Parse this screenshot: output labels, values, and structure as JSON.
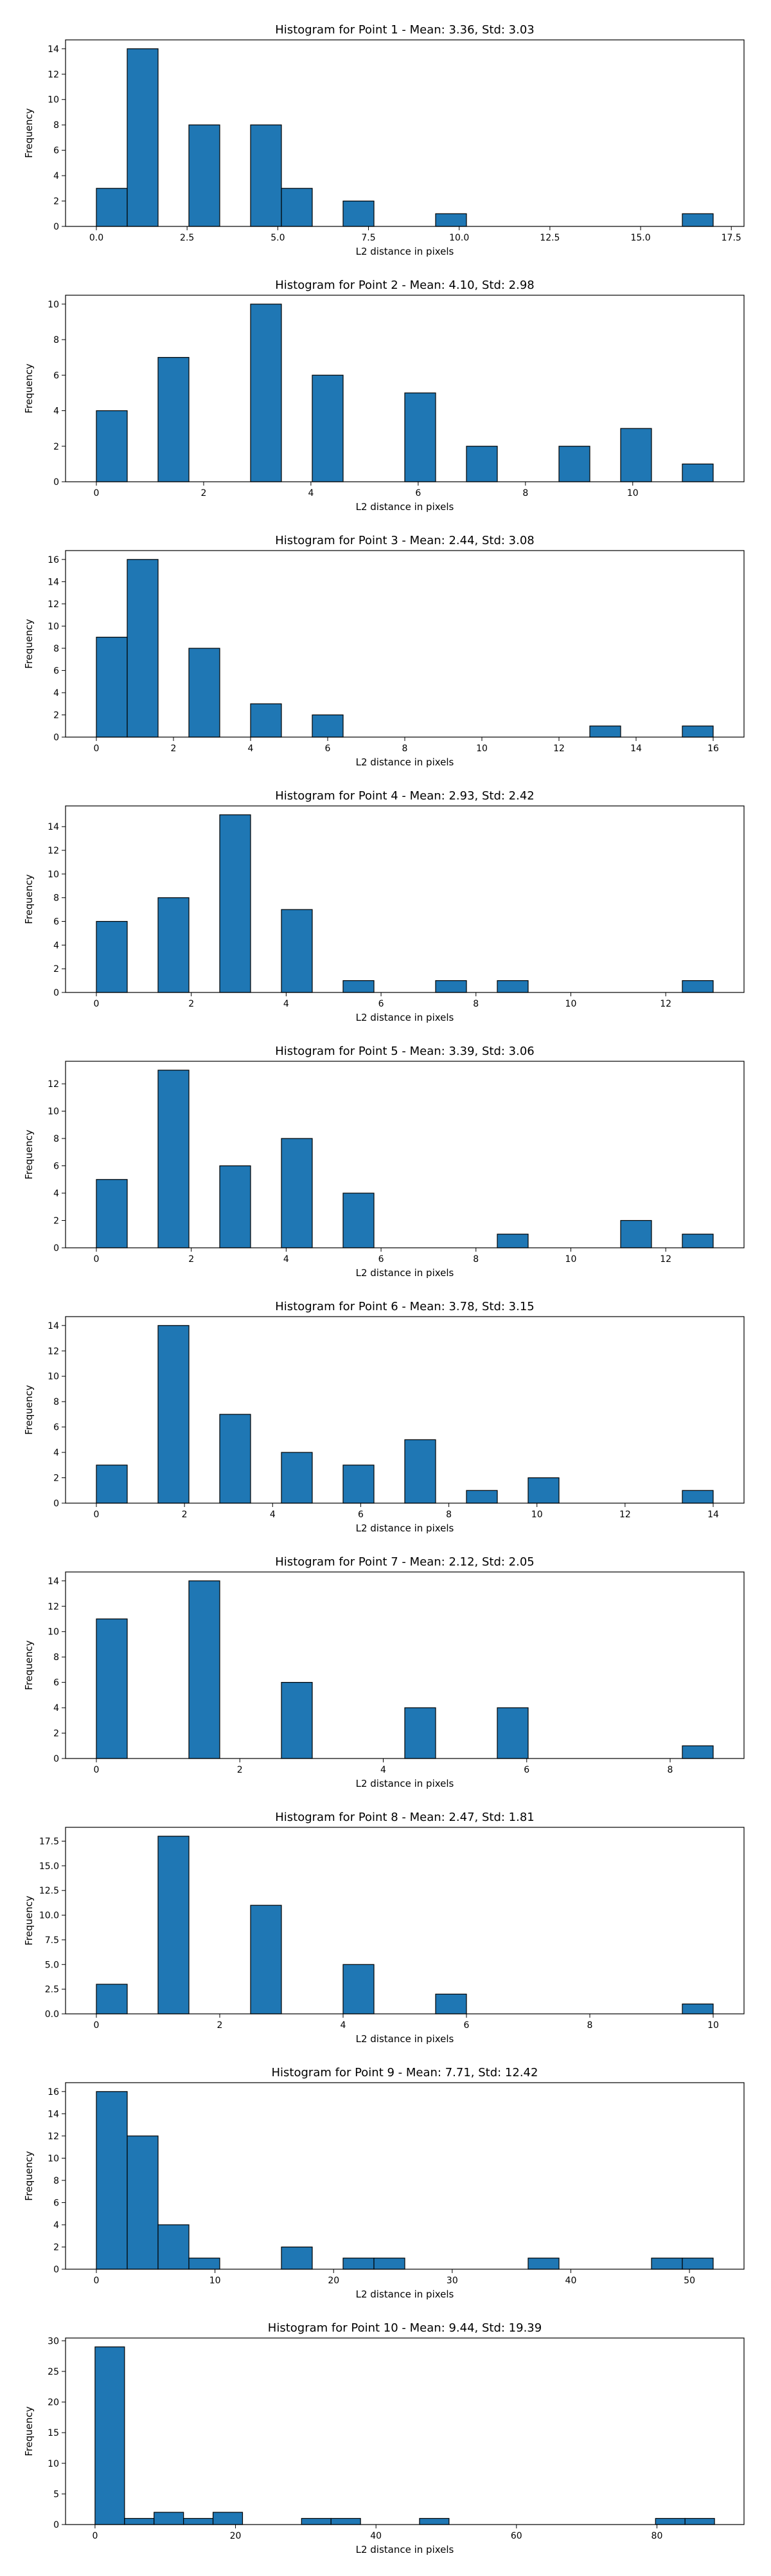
{
  "style": {
    "bar_color": "#1f77b4",
    "edge_color": "#000000",
    "bins": 20
  },
  "chart_data": [
    {
      "type": "bar",
      "title": "Histogram for Point 1 - Mean: 3.36, Std: 3.03",
      "xlabel": "L2 distance in pixels",
      "ylabel": "Frequency",
      "bin_width": 0.85,
      "bins": [
        [
          0.0,
          3
        ],
        [
          0.85,
          14
        ],
        [
          2.55,
          8
        ],
        [
          4.25,
          8
        ],
        [
          5.1,
          3
        ],
        [
          6.8,
          2
        ],
        [
          9.35,
          1
        ],
        [
          16.15,
          1
        ]
      ],
      "xlim": [
        -0.85,
        17.85
      ],
      "ylim": [
        0,
        14.7
      ],
      "xticks": [
        0.0,
        2.5,
        5.0,
        7.5,
        10.0,
        12.5,
        15.0,
        17.5
      ],
      "xtick_labels": [
        "0.0",
        "2.5",
        "5.0",
        "7.5",
        "10.0",
        "12.5",
        "15.0",
        "17.5"
      ],
      "yticks": [
        0,
        2,
        4,
        6,
        8,
        10,
        12,
        14
      ],
      "ytick_labels": [
        "0",
        "2",
        "4",
        "6",
        "8",
        "10",
        "12",
        "14"
      ]
    },
    {
      "type": "bar",
      "title": "Histogram for Point 2 - Mean: 4.10, Std: 2.98",
      "xlabel": "L2 distance in pixels",
      "ylabel": "Frequency",
      "bin_width": 0.575,
      "bins": [
        [
          0.0,
          4
        ],
        [
          1.15,
          7
        ],
        [
          2.875,
          10
        ],
        [
          4.025,
          6
        ],
        [
          5.75,
          5
        ],
        [
          6.9,
          2
        ],
        [
          8.625,
          2
        ],
        [
          9.775,
          3
        ],
        [
          10.925,
          1
        ]
      ],
      "xlim": [
        -0.575,
        12.075
      ],
      "ylim": [
        0,
        10.5
      ],
      "xticks": [
        0,
        2,
        4,
        6,
        8,
        10
      ],
      "xtick_labels": [
        "0",
        "2",
        "4",
        "6",
        "8",
        "10"
      ],
      "yticks": [
        0,
        2,
        4,
        6,
        8,
        10
      ],
      "ytick_labels": [
        "0",
        "2",
        "4",
        "6",
        "8",
        "10"
      ]
    },
    {
      "type": "bar",
      "title": "Histogram for Point 3 - Mean: 2.44, Std: 3.08",
      "xlabel": "L2 distance in pixels",
      "ylabel": "Frequency",
      "bin_width": 0.8,
      "bins": [
        [
          0.0,
          9
        ],
        [
          0.8,
          16
        ],
        [
          2.4,
          8
        ],
        [
          4.0,
          3
        ],
        [
          5.6,
          2
        ],
        [
          12.8,
          1
        ],
        [
          15.2,
          1
        ]
      ],
      "xlim": [
        -0.8,
        16.8
      ],
      "ylim": [
        0,
        16.8
      ],
      "xticks": [
        0,
        2,
        4,
        6,
        8,
        10,
        12,
        14,
        16
      ],
      "xtick_labels": [
        "0",
        "2",
        "4",
        "6",
        "8",
        "10",
        "12",
        "14",
        "16"
      ],
      "yticks": [
        0,
        2,
        4,
        6,
        8,
        10,
        12,
        14,
        16
      ],
      "ytick_labels": [
        "0",
        "2",
        "4",
        "6",
        "8",
        "10",
        "12",
        "14",
        "16"
      ]
    },
    {
      "type": "bar",
      "title": "Histogram for Point 4 - Mean: 2.93, Std: 2.42",
      "xlabel": "L2 distance in pixels",
      "ylabel": "Frequency",
      "bin_width": 0.65,
      "bins": [
        [
          0.0,
          6
        ],
        [
          1.3,
          8
        ],
        [
          2.6,
          15
        ],
        [
          3.9,
          7
        ],
        [
          5.2,
          1
        ],
        [
          7.15,
          1
        ],
        [
          8.45,
          1
        ],
        [
          12.35,
          1
        ]
      ],
      "xlim": [
        -0.65,
        13.65
      ],
      "ylim": [
        0,
        15.75
      ],
      "xticks": [
        0,
        2,
        4,
        6,
        8,
        10,
        12
      ],
      "xtick_labels": [
        "0",
        "2",
        "4",
        "6",
        "8",
        "10",
        "12"
      ],
      "yticks": [
        0,
        2,
        4,
        6,
        8,
        10,
        12,
        14
      ],
      "ytick_labels": [
        "0",
        "2",
        "4",
        "6",
        "8",
        "10",
        "12",
        "14"
      ]
    },
    {
      "type": "bar",
      "title": "Histogram for Point 5 - Mean: 3.39, Std: 3.06",
      "xlabel": "L2 distance in pixels",
      "ylabel": "Frequency",
      "bin_width": 0.65,
      "bins": [
        [
          0.0,
          5
        ],
        [
          1.3,
          13
        ],
        [
          2.6,
          6
        ],
        [
          3.9,
          8
        ],
        [
          5.2,
          4
        ],
        [
          8.45,
          1
        ],
        [
          11.05,
          2
        ],
        [
          12.35,
          1
        ]
      ],
      "xlim": [
        -0.65,
        13.65
      ],
      "ylim": [
        0,
        13.65
      ],
      "xticks": [
        0,
        2,
        4,
        6,
        8,
        10,
        12
      ],
      "xtick_labels": [
        "0",
        "2",
        "4",
        "6",
        "8",
        "10",
        "12"
      ],
      "yticks": [
        0,
        2,
        4,
        6,
        8,
        10,
        12
      ],
      "ytick_labels": [
        "0",
        "2",
        "4",
        "6",
        "8",
        "10",
        "12"
      ]
    },
    {
      "type": "bar",
      "title": "Histogram for Point 6 - Mean: 3.78, Std: 3.15",
      "xlabel": "L2 distance in pixels",
      "ylabel": "Frequency",
      "bin_width": 0.7,
      "bins": [
        [
          0.0,
          3
        ],
        [
          1.4,
          14
        ],
        [
          2.8,
          7
        ],
        [
          4.2,
          4
        ],
        [
          5.6,
          3
        ],
        [
          7.0,
          5
        ],
        [
          8.4,
          1
        ],
        [
          9.8,
          2
        ],
        [
          13.3,
          1
        ]
      ],
      "xlim": [
        -0.7,
        14.7
      ],
      "ylim": [
        0,
        14.7
      ],
      "xticks": [
        0,
        2,
        4,
        6,
        8,
        10,
        12,
        14
      ],
      "xtick_labels": [
        "0",
        "2",
        "4",
        "6",
        "8",
        "10",
        "12",
        "14"
      ],
      "yticks": [
        0,
        2,
        4,
        6,
        8,
        10,
        12,
        14
      ],
      "ytick_labels": [
        "0",
        "2",
        "4",
        "6",
        "8",
        "10",
        "12",
        "14"
      ]
    },
    {
      "type": "bar",
      "title": "Histogram for Point 7 - Mean: 2.12, Std: 2.05",
      "xlabel": "L2 distance in pixels",
      "ylabel": "Frequency",
      "bin_width": 0.43,
      "bins": [
        [
          0.0,
          11
        ],
        [
          1.29,
          14
        ],
        [
          2.58,
          6
        ],
        [
          4.3,
          4
        ],
        [
          5.59,
          4
        ],
        [
          8.17,
          1
        ]
      ],
      "xlim": [
        -0.43,
        9.03
      ],
      "ylim": [
        0,
        14.7
      ],
      "xticks": [
        0,
        2,
        4,
        6,
        8
      ],
      "xtick_labels": [
        "0",
        "2",
        "4",
        "6",
        "8"
      ],
      "yticks": [
        0,
        2,
        4,
        6,
        8,
        10,
        12,
        14
      ],
      "ytick_labels": [
        "0",
        "2",
        "4",
        "6",
        "8",
        "10",
        "12",
        "14"
      ]
    },
    {
      "type": "bar",
      "title": "Histogram for Point 8 - Mean: 2.47, Std: 1.81",
      "xlabel": "L2 distance in pixels",
      "ylabel": "Frequency",
      "bin_width": 0.5,
      "bins": [
        [
          0.0,
          3
        ],
        [
          1.0,
          18
        ],
        [
          2.5,
          11
        ],
        [
          4.0,
          5
        ],
        [
          5.5,
          2
        ],
        [
          9.5,
          1
        ]
      ],
      "xlim": [
        -0.5,
        10.5
      ],
      "ylim": [
        0,
        18.9
      ],
      "xticks": [
        0,
        2,
        4,
        6,
        8,
        10
      ],
      "xtick_labels": [
        "0",
        "2",
        "4",
        "6",
        "8",
        "10"
      ],
      "yticks": [
        0,
        2.5,
        5,
        7.5,
        10,
        12.5,
        15,
        17.5
      ],
      "ytick_labels": [
        "0.0",
        "2.5",
        "5.0",
        "7.5",
        "10.0",
        "12.5",
        "15.0",
        "17.5"
      ]
    },
    {
      "type": "bar",
      "title": "Histogram for Point 9 - Mean: 7.71, Std: 12.42",
      "xlabel": "L2 distance in pixels",
      "ylabel": "Frequency",
      "bin_width": 2.6,
      "bins": [
        [
          0.0,
          16
        ],
        [
          2.6,
          12
        ],
        [
          5.2,
          4
        ],
        [
          7.8,
          1
        ],
        [
          15.6,
          2
        ],
        [
          20.8,
          1
        ],
        [
          23.4,
          1
        ],
        [
          36.4,
          1
        ],
        [
          46.8,
          1
        ],
        [
          49.4,
          1
        ]
      ],
      "xlim": [
        -2.6,
        54.6
      ],
      "ylim": [
        0,
        16.8
      ],
      "xticks": [
        0,
        10,
        20,
        30,
        40,
        50
      ],
      "xtick_labels": [
        "0",
        "10",
        "20",
        "30",
        "40",
        "50"
      ],
      "yticks": [
        0,
        2,
        4,
        6,
        8,
        10,
        12,
        14,
        16
      ],
      "ytick_labels": [
        "0",
        "2",
        "4",
        "6",
        "8",
        "10",
        "12",
        "14",
        "16"
      ]
    },
    {
      "type": "bar",
      "title": "Histogram for Point 10 - Mean: 9.44, Std: 19.39",
      "xlabel": "L2 distance in pixels",
      "ylabel": "Frequency",
      "bin_width": 4.2,
      "bins": [
        [
          0.0,
          29
        ],
        [
          4.2,
          1
        ],
        [
          8.4,
          2
        ],
        [
          12.6,
          1
        ],
        [
          16.8,
          2
        ],
        [
          29.4,
          1
        ],
        [
          33.6,
          1
        ],
        [
          46.2,
          1
        ],
        [
          79.8,
          1
        ],
        [
          84.0,
          1
        ]
      ],
      "xlim": [
        -4.2,
        92.4
      ],
      "ylim": [
        0,
        30.45
      ],
      "xticks": [
        0,
        20,
        40,
        60,
        80
      ],
      "xtick_labels": [
        "0",
        "20",
        "40",
        "60",
        "80"
      ],
      "yticks": [
        0,
        5,
        10,
        15,
        20,
        25,
        30
      ],
      "ytick_labels": [
        "0",
        "5",
        "10",
        "15",
        "20",
        "25",
        "30"
      ]
    }
  ]
}
